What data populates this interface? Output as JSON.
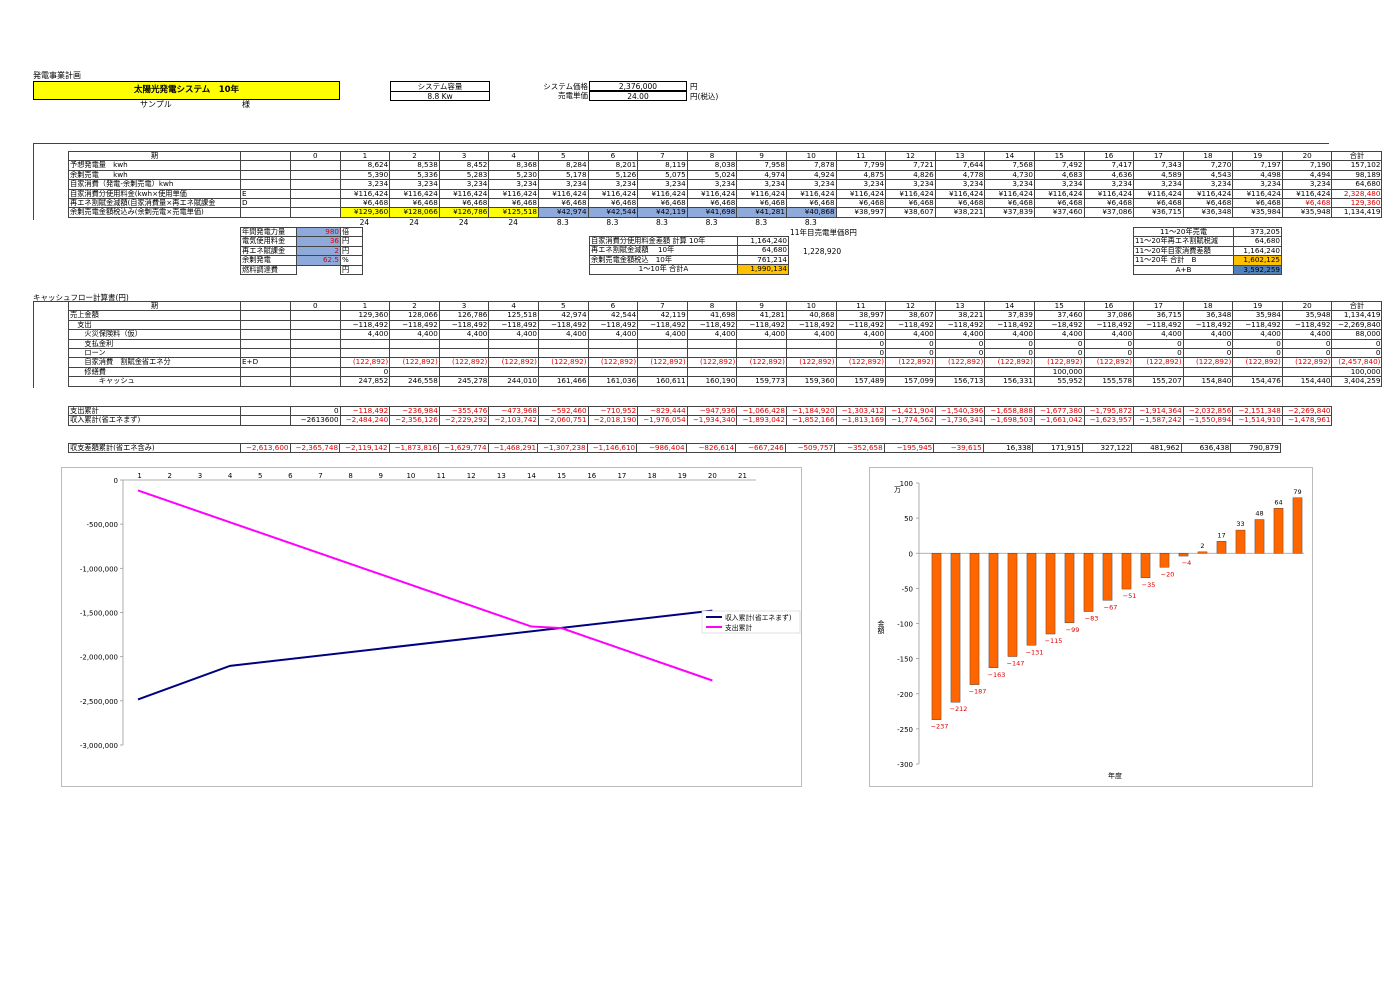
{
  "header": {
    "sheet_title": "発電事業計画",
    "system_name": "太陽光発電システム　10年",
    "customer": "サンプル",
    "honorific": "様",
    "capacity_label": "システム容量",
    "capacity_value": "8.8 Kw",
    "price_label": "システム価格",
    "price_value": "2,376,000",
    "price_unit": "円",
    "unit_price_label": "売電単価",
    "unit_price_value": "24.00",
    "unit_price_unit": "円(税込)"
  },
  "plan": {
    "columns": [
      "期",
      "0",
      "1",
      "2",
      "3",
      "4",
      "5",
      "6",
      "7",
      "8",
      "9",
      "10",
      "11",
      "12",
      "13",
      "14",
      "15",
      "16",
      "17",
      "18",
      "19",
      "20",
      "合計"
    ],
    "rows": [
      {
        "label": "予想発電量　kwh",
        "code": "",
        "values": [
          "8,624",
          "8,538",
          "8,452",
          "8,368",
          "8,284",
          "8,201",
          "8,119",
          "8,038",
          "7,958",
          "7,878",
          "7,799",
          "7,721",
          "7,644",
          "7,568",
          "7,492",
          "7,417",
          "7,343",
          "7,270",
          "7,197",
          "7,190"
        ],
        "total": "157,102"
      },
      {
        "label": "余剰売電　　kwh",
        "code": "",
        "values": [
          "5,390",
          "5,336",
          "5,283",
          "5,230",
          "5,178",
          "5,126",
          "5,075",
          "5,024",
          "4,974",
          "4,924",
          "4,875",
          "4,826",
          "4,778",
          "4,730",
          "4,683",
          "4,636",
          "4,589",
          "4,543",
          "4,498",
          "4,494"
        ],
        "total": "98,189"
      },
      {
        "label": "自家消費（発電-余剰売電）kwh",
        "code": "",
        "values": [
          "3,234",
          "3,234",
          "3,234",
          "3,234",
          "3,234",
          "3,234",
          "3,234",
          "3,234",
          "3,234",
          "3,234",
          "3,234",
          "3,234",
          "3,234",
          "3,234",
          "3,234",
          "3,234",
          "3,234",
          "3,234",
          "3,234",
          "3,234"
        ],
        "total": "64,680"
      },
      {
        "label": "自家消費分使用料金(kwh×使用単価",
        "code": "E",
        "values": [
          "¥116,424",
          "¥116,424",
          "¥116,424",
          "¥116,424",
          "¥116,424",
          "¥116,424",
          "¥116,424",
          "¥116,424",
          "¥116,424",
          "¥116,424",
          "¥116,424",
          "¥116,424",
          "¥116,424",
          "¥116,424",
          "¥116,424",
          "¥116,424",
          "¥116,424",
          "¥116,424",
          "¥116,424",
          "¥116,424"
        ],
        "total": "2,328,480"
      },
      {
        "label": "再エネ割賦金減額(自家消費量×再エネ賦課金",
        "code": "D",
        "values": [
          "¥6,468",
          "¥6,468",
          "¥6,468",
          "¥6,468",
          "¥6,468",
          "¥6,468",
          "¥6,468",
          "¥6,468",
          "¥6,468",
          "¥6,468",
          "¥6,468",
          "¥6,468",
          "¥6,468",
          "¥6,468",
          "¥6,468",
          "¥6,468",
          "¥6,468",
          "¥6,468",
          "¥6,468",
          "¥6,468"
        ],
        "total": "129,360"
      },
      {
        "label": "余剰売電金額税込み(余剰売電×売電単価)",
        "code": "",
        "values": [
          "¥129,360",
          "¥128,066",
          "¥126,786",
          "¥125,518",
          "¥42,974",
          "¥42,544",
          "¥42,119",
          "¥41,698",
          "¥41,281",
          "¥40,868",
          "¥38,997",
          "¥38,607",
          "¥38,221",
          "¥37,839",
          "¥37,460",
          "¥37,086",
          "¥36,715",
          "¥36,348",
          "¥35,984",
          "¥35,948"
        ],
        "total": "1,134,419"
      }
    ],
    "unit_price_row": [
      "24",
      "24",
      "24",
      "24",
      "8.3",
      "8.3",
      "8.3",
      "8.3",
      "8.3",
      "8.3"
    ]
  },
  "params": {
    "rows": [
      {
        "label": "年間発電力量",
        "value": "980",
        "unit": "倍"
      },
      {
        "label": "電気使用料金",
        "value": "36",
        "unit": "円"
      },
      {
        "label": "再エネ賦課金",
        "value": "2",
        "unit": "円"
      },
      {
        "label": "余剰発電",
        "value": "62.5",
        "unit": "%"
      },
      {
        "label": "燃料調達費",
        "value": "",
        "unit": "円"
      }
    ]
  },
  "summary10": {
    "note": "11年目売電単価8円",
    "rows": [
      {
        "label": "自家消費分使用料金差額 計算 10年",
        "value": "1,164,240"
      },
      {
        "label": "再エネ割賦金減額　 10年",
        "value": "64,680"
      },
      {
        "label": "余剰売電金額税込　10年",
        "value": "761,214"
      },
      {
        "label": "1～10年 合計A",
        "value": "1,990,134"
      }
    ],
    "extra": "1,228,920"
  },
  "summary20": {
    "rows": [
      {
        "label": "11～20年売電",
        "value": "373,205"
      },
      {
        "label": "11～20年再エネ割賦税減",
        "value": "64,680"
      },
      {
        "label": "11～20年自家消費差額",
        "value": "1,164,240"
      },
      {
        "label": "11～20年 合計　B",
        "value": "1,602,125"
      },
      {
        "label": "A+B",
        "value": "3,592,259"
      }
    ]
  },
  "cashflow": {
    "title": "キャッシュフロー計算書(円)",
    "columns": [
      "期",
      "0",
      "1",
      "2",
      "3",
      "4",
      "5",
      "6",
      "7",
      "8",
      "9",
      "10",
      "11",
      "12",
      "13",
      "14",
      "15",
      "16",
      "17",
      "18",
      "19",
      "20",
      "合計"
    ],
    "rows": [
      {
        "label": "売上金額",
        "code": "",
        "v0": "",
        "values": [
          "129,360",
          "128,066",
          "126,786",
          "125,518",
          "42,974",
          "42,544",
          "42,119",
          "41,698",
          "41,281",
          "40,868",
          "38,997",
          "38,607",
          "38,221",
          "37,839",
          "37,460",
          "37,086",
          "36,715",
          "36,348",
          "35,984",
          "35,948"
        ],
        "total": "1,134,419",
        "red": false
      },
      {
        "label": "　支出",
        "code": "",
        "v0": "",
        "values": [
          "−118,492",
          "−118,492",
          "−118,492",
          "−118,492",
          "−118,492",
          "−118,492",
          "−118,492",
          "−118,492",
          "−118,492",
          "−118,492",
          "−118,492",
          "−118,492",
          "−118,492",
          "−118,492",
          "−18,492",
          "−118,492",
          "−118,492",
          "−118,492",
          "−118,492",
          "−118,492"
        ],
        "total": "−2,269,840",
        "red": false
      },
      {
        "label": "　　火災保険料（仮）",
        "code": "",
        "v0": "",
        "values": [
          "4,400",
          "4,400",
          "4,400",
          "4,400",
          "4,400",
          "4,400",
          "4,400",
          "4,400",
          "4,400",
          "4,400",
          "4,400",
          "4,400",
          "4,400",
          "4,400",
          "4,400",
          "4,400",
          "4,400",
          "4,400",
          "4,400",
          "4,400"
        ],
        "total": "88,000",
        "red": false
      },
      {
        "label": "　　支払金利",
        "code": "",
        "v0": "",
        "values": [
          "",
          "",
          "",
          "",
          "",
          "",
          "",
          "",
          "",
          "",
          "0",
          "0",
          "0",
          "0",
          "0",
          "0",
          "0",
          "0",
          "0",
          "0"
        ],
        "total": "0",
        "red": false
      },
      {
        "label": "　　ローン",
        "code": "",
        "v0": "",
        "values": [
          "",
          "",
          "",
          "",
          "",
          "",
          "",
          "",
          "",
          "",
          "0",
          "0",
          "0",
          "0",
          "0",
          "0",
          "0",
          "0",
          "0",
          "0"
        ],
        "total": "0",
        "red": false
      },
      {
        "label": "　　自家消費　割賦金省エネ分",
        "code": "E+D",
        "v0": "",
        "values": [
          "(122,892)",
          "(122,892)",
          "(122,892)",
          "(122,892)",
          "(122,892)",
          "(122,892)",
          "(122,892)",
          "(122,892)",
          "(122,892)",
          "(122,892)",
          "(122,892)",
          "(122,892)",
          "(122,892)",
          "(122,892)",
          "(122,892)",
          "(122,892)",
          "(122,892)",
          "(122,892)",
          "(122,892)",
          "(122,892)"
        ],
        "total": "(2,457,840)",
        "red": true
      },
      {
        "label": "　　修繕費",
        "code": "",
        "v0": "",
        "values": [
          "0",
          "",
          "",
          "",
          "",
          "",
          "",
          "",
          "",
          "",
          "",
          "",
          "",
          "",
          "100,000",
          "",
          "",
          "",
          "",
          ""
        ],
        "total": "100,000",
        "red": false
      },
      {
        "label": "　　　　キャッシュ",
        "code": "",
        "v0": "",
        "values": [
          "247,852",
          "246,558",
          "245,278",
          "244,010",
          "161,466",
          "161,036",
          "160,611",
          "160,190",
          "159,773",
          "159,360",
          "157,489",
          "157,099",
          "156,713",
          "156,331",
          "55,952",
          "155,578",
          "155,207",
          "154,840",
          "154,476",
          "154,440"
        ],
        "total": "3,404,259",
        "red": false
      }
    ]
  },
  "cumulative": {
    "rows": [
      {
        "label": "支出累計",
        "v0": "0",
        "values": [
          "−118,492",
          "−236,984",
          "−355,476",
          "−473,968",
          "−592,460",
          "−710,952",
          "−829,444",
          "−947,936",
          "−1,066,428",
          "−1,184,920",
          "−1,303,412",
          "−1,421,904",
          "−1,540,396",
          "−1,658,888",
          "−1,677,380",
          "−1,795,872",
          "−1,914,364",
          "−2,032,856",
          "−2,151,348",
          "−2,269,840"
        ]
      },
      {
        "label": "収入累計(省エネまず)",
        "v0": "−2613600",
        "values": [
          "−2,484,240",
          "−2,356,126",
          "−2,229,292",
          "−2,103,742",
          "−2,060,751",
          "−2,018,190",
          "−1,976,054",
          "−1,934,340",
          "−1,893,042",
          "−1,852,166",
          "−1,813,169",
          "−1,774,562",
          "−1,736,341",
          "−1,698,503",
          "−1,661,042",
          "−1,623,957",
          "−1,587,242",
          "−1,550,894",
          "−1,514,910",
          "−1,478,961"
        ]
      }
    ],
    "balance_label": "収支差額累計(省エネ含み)",
    "balance_values": [
      "−2,613,600",
      "−2,365,748",
      "−2,119,142",
      "−1,873,816",
      "−1,629,774",
      "−1,468,291",
      "−1,307,238",
      "−1,146,610",
      "−986,404",
      "−826,614",
      "−667,246",
      "−509,757",
      "−352,658",
      "−195,945",
      "−39,615",
      "16,338",
      "171,915",
      "327,122",
      "481,962",
      "636,438",
      "790,879"
    ]
  },
  "chart_data": [
    {
      "type": "line",
      "title": "",
      "x_ticks": [
        "1",
        "2",
        "3",
        "4",
        "5",
        "6",
        "7",
        "8",
        "9",
        "10",
        "11",
        "12",
        "13",
        "14",
        "15",
        "16",
        "17",
        "18",
        "19",
        "20",
        "21"
      ],
      "y_ticks": [
        "0",
        "-500,000",
        "-1,000,000",
        "-1,500,000",
        "-2,000,000",
        "-2,500,000",
        "-3,000,000"
      ],
      "ylim": [
        -3000000,
        0
      ],
      "series": [
        {
          "name": "収入累計(省エネまず)",
          "color": "#000080",
          "x": [
            1,
            4,
            20
          ],
          "y": [
            -2484240,
            -2103742,
            -1478961
          ]
        },
        {
          "name": "支出累計",
          "color": "#ff00ff",
          "x": [
            1,
            14,
            15,
            20
          ],
          "y": [
            -118492,
            -1658888,
            -1677380,
            -2269840
          ]
        }
      ],
      "legend": "right"
    },
    {
      "type": "bar",
      "title": "",
      "ylabel": "金額",
      "y_unit": "万",
      "xlabel": "年度",
      "y_ticks": [
        "100",
        "50",
        "0",
        "-50",
        "-100",
        "-150",
        "-200",
        "-250",
        "-300"
      ],
      "ylim": [
        -300,
        100
      ],
      "values": [
        -237,
        -212,
        -187,
        -163,
        -147,
        -131,
        -115,
        -99,
        -83,
        -67,
        -51,
        -35,
        -20,
        -4,
        2,
        17,
        33,
        48,
        64,
        79
      ],
      "labels": [
        "−237",
        "−212",
        "−187",
        "−163",
        "−147",
        "−131",
        "−115",
        "−99",
        "−83",
        "−67",
        "−51",
        "−35",
        "−20",
        "−4",
        "2",
        "17",
        "33",
        "48",
        "64",
        "79"
      ],
      "color": "#ff6600"
    }
  ]
}
